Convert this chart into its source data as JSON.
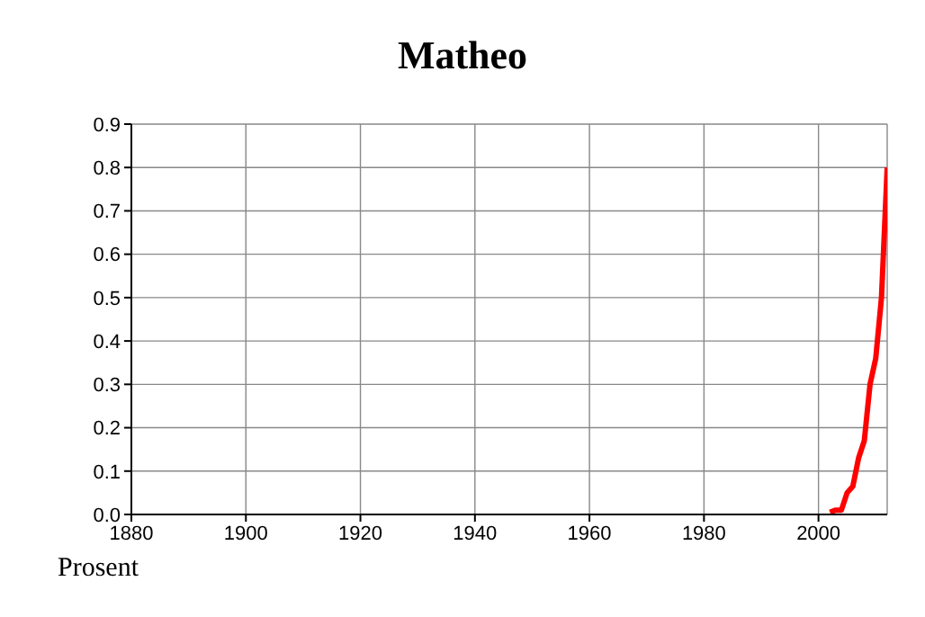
{
  "chart_data": {
    "type": "line",
    "title": "Matheo",
    "ylabel": "Prosent",
    "x": [
      2002,
      2003,
      2004,
      2005,
      2006,
      2007,
      2008,
      2009,
      2010,
      2011,
      2012
    ],
    "series": [
      {
        "color": "#ff0000",
        "values": [
          0.005,
          0.01,
          0.01,
          0.05,
          0.065,
          0.13,
          0.17,
          0.3,
          0.36,
          0.5,
          0.8
        ]
      }
    ],
    "xlim": [
      1880,
      2012
    ],
    "xticks": [
      1880,
      1900,
      1920,
      1940,
      1960,
      1980,
      2000
    ],
    "ylim": [
      0,
      0.9
    ],
    "yticks": [
      {
        "value": 0,
        "label": "0.0"
      },
      0.1,
      0.2,
      0.3,
      0.4,
      0.5,
      0.6,
      0.7,
      0.8,
      0.9
    ],
    "grid": true,
    "legend": false,
    "marker": "none",
    "line_style": "solid"
  }
}
